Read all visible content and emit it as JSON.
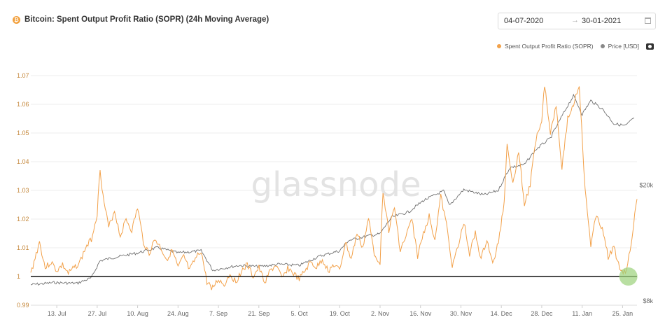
{
  "header": {
    "title": "Bitcoin: Spent Output Profit Ratio (SOPR) (24h Moving Average)",
    "date_from": "04-07-2020",
    "date_to": "30-01-2021",
    "arrow": "→"
  },
  "legend": {
    "items": [
      {
        "label": "Spent Output Profit Ratio (SOPR)",
        "color": "#f2a14a"
      },
      {
        "label": "Price [USD]",
        "color": "#888888"
      }
    ]
  },
  "watermark": "glassnode",
  "colors": {
    "sopr": "#f2a14a",
    "price": "#707070",
    "baseline": "#111111",
    "highlight": "#9bd27a"
  },
  "icons": {
    "logo": "bitcoin-icon",
    "calendar": "calendar-icon",
    "download": "camera-icon"
  },
  "chart_data": {
    "type": "line",
    "title": "Bitcoin: Spent Output Profit Ratio (SOPR) (24h Moving Average)",
    "x_ticks": [
      "13. Jul",
      "27. Jul",
      "10. Aug",
      "24. Aug",
      "7. Sep",
      "21. Sep",
      "5. Oct",
      "19. Oct",
      "2. Nov",
      "16. Nov",
      "30. Nov",
      "14. Dec",
      "28. Dec",
      "11. Jan",
      "25. Jan"
    ],
    "x_range": [
      "2020-07-04",
      "2021-01-30"
    ],
    "y_left": {
      "ticks": [
        "0.99",
        "1",
        "1.01",
        "1.02",
        "1.03",
        "1.04",
        "1.05",
        "1.06",
        "1.07"
      ],
      "range": [
        0.99,
        1.07
      ],
      "label": ""
    },
    "y_right": {
      "ticks": [
        "$8k",
        "$20k"
      ],
      "scale": "log",
      "label": ""
    },
    "baseline": 1,
    "grid": "horizontal",
    "legend_position": "top-right",
    "series": [
      {
        "name": "Spent Output Profit Ratio (SOPR)",
        "axis": "left",
        "points": [
          [
            "2020-07-04",
            1.001
          ],
          [
            "2020-07-07",
            1.012
          ],
          [
            "2020-07-09",
            1.003
          ],
          [
            "2020-07-11",
            1.005
          ],
          [
            "2020-07-13",
            1.002
          ],
          [
            "2020-07-15",
            1.004
          ],
          [
            "2020-07-17",
            1.001
          ],
          [
            "2020-07-19",
            1.003
          ],
          [
            "2020-07-21",
            1.005
          ],
          [
            "2020-07-23",
            1.01
          ],
          [
            "2020-07-25",
            1.013
          ],
          [
            "2020-07-27",
            1.022
          ],
          [
            "2020-07-28",
            1.038
          ],
          [
            "2020-07-29",
            1.028
          ],
          [
            "2020-07-31",
            1.017
          ],
          [
            "2020-08-02",
            1.023
          ],
          [
            "2020-08-04",
            1.014
          ],
          [
            "2020-08-06",
            1.02
          ],
          [
            "2020-08-08",
            1.016
          ],
          [
            "2020-08-10",
            1.024
          ],
          [
            "2020-08-12",
            1.012
          ],
          [
            "2020-08-14",
            1.008
          ],
          [
            "2020-08-16",
            1.013
          ],
          [
            "2020-08-18",
            1.01
          ],
          [
            "2020-08-20",
            1.006
          ],
          [
            "2020-08-22",
            1.009
          ],
          [
            "2020-08-24",
            1.003
          ],
          [
            "2020-08-26",
            1.007
          ],
          [
            "2020-08-28",
            1.002
          ],
          [
            "2020-08-30",
            1.006
          ],
          [
            "2020-09-01",
            1.009
          ],
          [
            "2020-09-03",
            0.998
          ],
          [
            "2020-09-05",
            0.996
          ],
          [
            "2020-09-07",
            0.999
          ],
          [
            "2020-09-09",
            0.997
          ],
          [
            "2020-09-11",
            1.001
          ],
          [
            "2020-09-13",
            0.998
          ],
          [
            "2020-09-15",
            1.002
          ],
          [
            "2020-09-17",
            1.004
          ],
          [
            "2020-09-19",
            1.0
          ],
          [
            "2020-09-21",
            1.003
          ],
          [
            "2020-09-23",
            0.998
          ],
          [
            "2020-09-25",
            1.002
          ],
          [
            "2020-09-27",
            1.004
          ],
          [
            "2020-09-29",
            0.999
          ],
          [
            "2020-10-01",
            1.003
          ],
          [
            "2020-10-03",
            1.001
          ],
          [
            "2020-10-05",
            0.999
          ],
          [
            "2020-10-07",
            1.002
          ],
          [
            "2020-10-09",
            1.005
          ],
          [
            "2020-10-11",
            1.003
          ],
          [
            "2020-10-13",
            1.006
          ],
          [
            "2020-10-15",
            1.002
          ],
          [
            "2020-10-17",
            1.004
          ],
          [
            "2020-10-19",
            1.002
          ],
          [
            "2020-10-21",
            1.012
          ],
          [
            "2020-10-23",
            1.006
          ],
          [
            "2020-10-25",
            1.015
          ],
          [
            "2020-10-27",
            1.01
          ],
          [
            "2020-10-29",
            1.02
          ],
          [
            "2020-10-31",
            1.008
          ],
          [
            "2020-11-02",
            1.005
          ],
          [
            "2020-11-03",
            1.03
          ],
          [
            "2020-11-05",
            1.016
          ],
          [
            "2020-11-07",
            1.024
          ],
          [
            "2020-11-09",
            1.009
          ],
          [
            "2020-11-11",
            1.014
          ],
          [
            "2020-11-13",
            1.02
          ],
          [
            "2020-11-15",
            1.007
          ],
          [
            "2020-11-17",
            1.015
          ],
          [
            "2020-11-19",
            1.021
          ],
          [
            "2020-11-21",
            1.013
          ],
          [
            "2020-11-23",
            1.028
          ],
          [
            "2020-11-25",
            1.018
          ],
          [
            "2020-11-27",
            1.004
          ],
          [
            "2020-11-29",
            1.01
          ],
          [
            "2020-12-01",
            1.019
          ],
          [
            "2020-12-03",
            1.008
          ],
          [
            "2020-12-05",
            1.015
          ],
          [
            "2020-12-07",
            1.006
          ],
          [
            "2020-12-09",
            1.013
          ],
          [
            "2020-12-11",
            1.004
          ],
          [
            "2020-12-13",
            1.012
          ],
          [
            "2020-12-15",
            1.026
          ],
          [
            "2020-12-16",
            1.047
          ],
          [
            "2020-12-18",
            1.032
          ],
          [
            "2020-12-20",
            1.044
          ],
          [
            "2020-12-22",
            1.025
          ],
          [
            "2020-12-24",
            1.032
          ],
          [
            "2020-12-26",
            1.048
          ],
          [
            "2020-12-28",
            1.055
          ],
          [
            "2020-12-29",
            1.067
          ],
          [
            "2020-12-31",
            1.05
          ],
          [
            "2021-01-02",
            1.06
          ],
          [
            "2021-01-04",
            1.038
          ],
          [
            "2021-01-06",
            1.055
          ],
          [
            "2021-01-08",
            1.06
          ],
          [
            "2021-01-10",
            1.067
          ],
          [
            "2021-01-12",
            1.03
          ],
          [
            "2021-01-14",
            1.011
          ],
          [
            "2021-01-16",
            1.022
          ],
          [
            "2021-01-18",
            1.016
          ],
          [
            "2021-01-20",
            1.007
          ],
          [
            "2021-01-22",
            1.01
          ],
          [
            "2021-01-24",
            1.003
          ],
          [
            "2021-01-26",
            1.001
          ],
          [
            "2021-01-28",
            1.012
          ],
          [
            "2021-01-30",
            1.027
          ]
        ]
      },
      {
        "name": "Price [USD]",
        "axis": "right",
        "points": [
          [
            "2020-07-04",
            9100
          ],
          [
            "2020-07-12",
            9250
          ],
          [
            "2020-07-20",
            9200
          ],
          [
            "2020-07-25",
            9600
          ],
          [
            "2020-07-28",
            11000
          ],
          [
            "2020-08-02",
            11300
          ],
          [
            "2020-08-10",
            11700
          ],
          [
            "2020-08-17",
            12200
          ],
          [
            "2020-08-24",
            11700
          ],
          [
            "2020-09-01",
            11900
          ],
          [
            "2020-09-05",
            10200
          ],
          [
            "2020-09-14",
            10600
          ],
          [
            "2020-09-21",
            10500
          ],
          [
            "2020-09-28",
            10700
          ],
          [
            "2020-10-05",
            10600
          ],
          [
            "2020-10-12",
            11400
          ],
          [
            "2020-10-19",
            11900
          ],
          [
            "2020-10-22",
            12900
          ],
          [
            "2020-10-29",
            13400
          ],
          [
            "2020-11-02",
            13600
          ],
          [
            "2020-11-06",
            15500
          ],
          [
            "2020-11-12",
            16200
          ],
          [
            "2020-11-17",
            17700
          ],
          [
            "2020-11-24",
            19100
          ],
          [
            "2020-11-26",
            17000
          ],
          [
            "2020-12-01",
            19300
          ],
          [
            "2020-12-08",
            18500
          ],
          [
            "2020-12-13",
            19200
          ],
          [
            "2020-12-17",
            23000
          ],
          [
            "2020-12-22",
            23500
          ],
          [
            "2020-12-26",
            26500
          ],
          [
            "2020-12-31",
            29000
          ],
          [
            "2021-01-03",
            33000
          ],
          [
            "2021-01-08",
            40500
          ],
          [
            "2021-01-11",
            35000
          ],
          [
            "2021-01-14",
            39000
          ],
          [
            "2021-01-18",
            36500
          ],
          [
            "2021-01-22",
            32500
          ],
          [
            "2021-01-26",
            32000
          ],
          [
            "2021-01-29",
            34000
          ]
        ]
      }
    ],
    "annotation": {
      "type": "circle",
      "date": "2021-01-27",
      "value": 1.0
    }
  }
}
